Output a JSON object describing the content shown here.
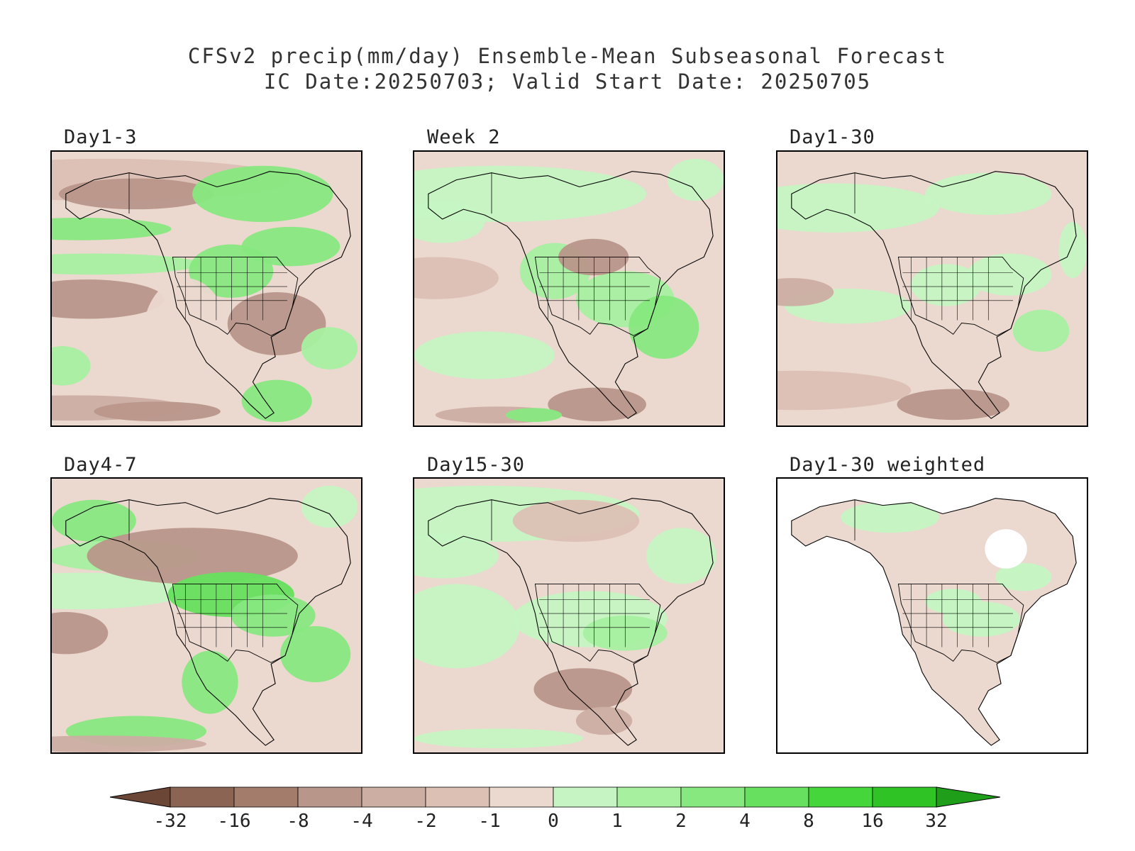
{
  "title": {
    "line1": "CFSv2 precip(mm/day) Ensemble-Mean Subseasonal Forecast",
    "line2": "IC Date:20250703; Valid Start Date: 20250705"
  },
  "panels": [
    {
      "id": "day1-3",
      "label": "Day1-3",
      "pattern": "day1_3",
      "masked": false
    },
    {
      "id": "week2",
      "label": "Week 2",
      "pattern": "week2",
      "masked": false
    },
    {
      "id": "day1-30",
      "label": "Day1-30",
      "pattern": "day1_30",
      "masked": false
    },
    {
      "id": "day4-7",
      "label": "Day4-7",
      "pattern": "day4_7",
      "masked": false
    },
    {
      "id": "day15-30",
      "label": "Day15-30",
      "pattern": "day15_30",
      "masked": false
    },
    {
      "id": "day1-30-weighted",
      "label": "Day1-30 weighted",
      "pattern": "weighted",
      "masked": true
    }
  ],
  "colorbar": {
    "tick_labels": [
      "-32",
      "-16",
      "-8",
      "-4",
      "-2",
      "-1",
      "0",
      "1",
      "2",
      "4",
      "8",
      "16",
      "32"
    ],
    "colors": [
      "#6b4536",
      "#8c6454",
      "#a37c6c",
      "#b9968a",
      "#ccaea3",
      "#dcc0b4",
      "#ebd8cf",
      "#c6f5c3",
      "#a6f0a0",
      "#87e880",
      "#66e05e",
      "#45d63b",
      "#2fc326",
      "#1f9e1a"
    ]
  }
}
